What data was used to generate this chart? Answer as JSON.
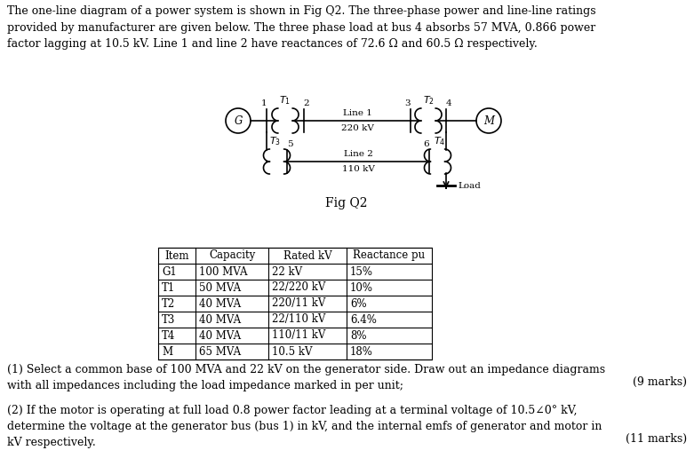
{
  "bg_color": "#ffffff",
  "text_color": "#000000",
  "title_text": "The one-line diagram of a power system is shown in Fig Q2. The three-phase power and line-line ratings\nprovided by manufacturer are given below. The three phase load at bus 4 absorbs 57 MVA, 0.866 power\nfactor lagging at 10.5 kV. Line 1 and line 2 have reactances of 72.6 Ω and 60.5 Ω respectively.",
  "fig_caption": "Fig Q2",
  "table_headers": [
    "Item",
    "Capacity",
    "Rated kV",
    "Reactance pu"
  ],
  "table_rows": [
    [
      "G1",
      "100 MVA",
      "22 kV",
      "15%"
    ],
    [
      "T1",
      "50 MVA",
      "22/220 kV",
      "10%"
    ],
    [
      "T2",
      "40 MVA",
      "220/11 kV",
      "6%"
    ],
    [
      "T3",
      "40 MVA",
      "22/110 kV",
      "6.4%"
    ],
    [
      "T4",
      "40 MVA",
      "110/11 kV",
      "8%"
    ],
    [
      "M",
      "65 MVA",
      "10.5 kV",
      "18%"
    ]
  ],
  "question1": "(1) Select a common base of 100 MVA and 22 kV on the generator side. Draw out an impedance diagrams\nwith all impedances including the load impedance marked in per unit;",
  "question1_marks": "(9 marks)",
  "question2": "(2) If the motor is operating at full load 0.8 power factor leading at a terminal voltage of 10.5∠0° kV,\ndetermine the voltage at the generator bus (bus 1) in kV, and the internal emfs of generator and motor in\nkV respectively.",
  "question2_marks": "(11 marks)"
}
